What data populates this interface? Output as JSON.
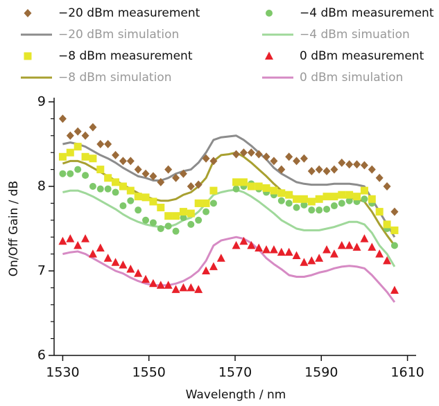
{
  "chart_data": {
    "type": "scatter",
    "xlabel": "Wavelength / nm",
    "ylabel": "On/Off  Gain / dB",
    "xlim": [
      1528,
      1612
    ],
    "xticks": [
      1530,
      1550,
      1570,
      1590,
      1610
    ],
    "ylim": [
      6,
      9
    ],
    "yticks": [
      6,
      7,
      8,
      9
    ],
    "yminorticks": [
      6.2,
      6.4,
      6.6,
      6.8,
      7.2,
      7.4,
      7.6,
      7.8,
      8.2,
      8.4,
      8.6,
      8.8
    ],
    "x": [
      1530,
      1531.75,
      1533.5,
      1535.25,
      1537,
      1538.75,
      1540.5,
      1542.25,
      1544,
      1545.75,
      1547.5,
      1549.25,
      1551,
      1552.75,
      1554.5,
      1556.25,
      1558,
      1559.75,
      1561.5,
      1563.25,
      1565,
      1566.75,
      1568.5,
      1570.25,
      1572,
      1573.75,
      1575.5,
      1577.25,
      1579,
      1580.75,
      1582.5,
      1584.25,
      1586,
      1587.75,
      1589.5,
      1591.25,
      1593,
      1594.75,
      1596.5,
      1598.25,
      1600,
      1601.75,
      1603.5,
      1605.25,
      1607
    ],
    "series": [
      {
        "name": "−20 dBm measurement",
        "mode": "markers",
        "marker": "diamond",
        "color": "#9b6b3a",
        "values": [
          8.8,
          8.6,
          8.65,
          8.6,
          8.7,
          8.5,
          8.5,
          8.37,
          8.3,
          8.3,
          8.2,
          8.15,
          8.12,
          8.05,
          8.2,
          8.1,
          8.15,
          8.0,
          8.02,
          8.33,
          8.3,
          null,
          null,
          8.38,
          8.4,
          8.4,
          8.38,
          8.35,
          8.3,
          8.2,
          8.35,
          8.3,
          8.33,
          8.18,
          8.2,
          8.18,
          8.2,
          8.28,
          8.26,
          8.26,
          8.25,
          8.2,
          8.1,
          8.0,
          7.7
        ]
      },
      {
        "name": "−4 dBm measurement",
        "mode": "markers",
        "marker": "circle",
        "color": "#7ec86a",
        "values": [
          8.15,
          8.15,
          8.2,
          8.13,
          8.0,
          7.97,
          7.97,
          7.93,
          7.77,
          7.83,
          7.72,
          7.6,
          7.57,
          7.5,
          7.53,
          7.47,
          7.63,
          7.55,
          7.6,
          7.7,
          7.8,
          null,
          null,
          7.97,
          8.0,
          8.03,
          7.97,
          7.93,
          7.9,
          7.83,
          7.8,
          7.75,
          7.78,
          7.72,
          7.72,
          7.73,
          7.77,
          7.8,
          7.83,
          7.82,
          7.85,
          7.8,
          7.7,
          7.5,
          7.3
        ]
      },
      {
        "name": "−20 dBm simulation",
        "mode": "line",
        "color": "#8c8c8c",
        "values": [
          8.5,
          8.52,
          8.5,
          8.47,
          8.42,
          8.37,
          8.33,
          8.28,
          8.22,
          8.17,
          8.12,
          8.1,
          8.07,
          8.07,
          8.1,
          8.15,
          8.18,
          8.2,
          8.28,
          8.4,
          8.55,
          8.58,
          8.59,
          8.6,
          8.55,
          8.48,
          8.4,
          8.32,
          8.22,
          8.15,
          8.1,
          8.05,
          8.03,
          8.02,
          8.02,
          8.02,
          8.03,
          8.03,
          8.03,
          8.02,
          8.0,
          7.85,
          7.7,
          7.55,
          7.4
        ]
      },
      {
        "name": "−4 dBm simuation",
        "mode": "line",
        "color": "#9fd89a",
        "values": [
          7.93,
          7.95,
          7.95,
          7.92,
          7.88,
          7.83,
          7.78,
          7.73,
          7.67,
          7.62,
          7.58,
          7.55,
          7.53,
          7.52,
          7.52,
          7.55,
          7.6,
          7.63,
          7.7,
          7.8,
          7.9,
          7.93,
          7.95,
          7.96,
          7.93,
          7.88,
          7.82,
          7.75,
          7.68,
          7.6,
          7.55,
          7.5,
          7.48,
          7.48,
          7.48,
          7.5,
          7.52,
          7.55,
          7.58,
          7.58,
          7.55,
          7.45,
          7.3,
          7.2,
          7.05
        ]
      },
      {
        "name": "−8 dBm measurement",
        "mode": "markers",
        "marker": "square",
        "color": "#e6e62a",
        "values": [
          8.35,
          8.4,
          8.47,
          8.35,
          8.33,
          8.2,
          8.1,
          8.05,
          8.0,
          7.95,
          7.88,
          7.87,
          7.82,
          7.75,
          7.65,
          7.65,
          7.7,
          7.68,
          7.8,
          7.8,
          7.95,
          null,
          null,
          8.05,
          8.05,
          8.0,
          8.0,
          7.98,
          7.95,
          7.92,
          7.9,
          7.85,
          7.85,
          7.82,
          7.85,
          7.88,
          7.88,
          7.9,
          7.9,
          7.88,
          7.95,
          7.85,
          7.7,
          7.55,
          7.48
        ]
      },
      {
        "name": "0 dBm measurement",
        "mode": "markers",
        "marker": "triangle",
        "color": "#e8202a",
        "values": [
          7.35,
          7.38,
          7.3,
          7.38,
          7.2,
          7.27,
          7.15,
          7.1,
          7.07,
          7.02,
          6.97,
          6.9,
          6.85,
          6.83,
          6.83,
          6.78,
          6.8,
          6.8,
          6.78,
          7.0,
          7.05,
          7.15,
          null,
          7.3,
          7.35,
          7.3,
          7.27,
          7.25,
          7.25,
          7.22,
          7.22,
          7.18,
          7.1,
          7.12,
          7.15,
          7.25,
          7.2,
          7.3,
          7.3,
          7.28,
          7.38,
          7.28,
          7.2,
          7.12,
          6.77
        ]
      },
      {
        "name": "−8 dBm simulation",
        "mode": "line",
        "color": "#a8a030",
        "values": [
          8.27,
          8.3,
          8.3,
          8.27,
          8.22,
          8.17,
          8.12,
          8.07,
          8.02,
          7.97,
          7.92,
          7.88,
          7.85,
          7.83,
          7.83,
          7.85,
          7.9,
          7.93,
          8.0,
          8.1,
          8.3,
          8.37,
          8.38,
          8.4,
          8.35,
          8.28,
          8.2,
          8.12,
          8.03,
          7.95,
          7.9,
          7.87,
          7.85,
          7.85,
          7.85,
          7.85,
          7.87,
          7.88,
          7.87,
          7.85,
          7.82,
          7.7,
          7.55,
          7.42,
          7.3
        ]
      },
      {
        "name": "0 dBm simulation",
        "mode": "line",
        "color": "#d68ac4",
        "values": [
          7.2,
          7.22,
          7.23,
          7.2,
          7.15,
          7.1,
          7.05,
          7.0,
          6.97,
          6.92,
          6.88,
          6.85,
          6.83,
          6.83,
          6.83,
          6.85,
          6.88,
          6.93,
          7.0,
          7.12,
          7.3,
          7.36,
          7.38,
          7.4,
          7.38,
          7.33,
          7.25,
          7.15,
          7.08,
          7.02,
          6.95,
          6.93,
          6.93,
          6.95,
          6.98,
          7.0,
          7.03,
          7.05,
          7.06,
          7.05,
          7.03,
          6.95,
          6.85,
          6.75,
          6.63
        ]
      }
    ]
  }
}
